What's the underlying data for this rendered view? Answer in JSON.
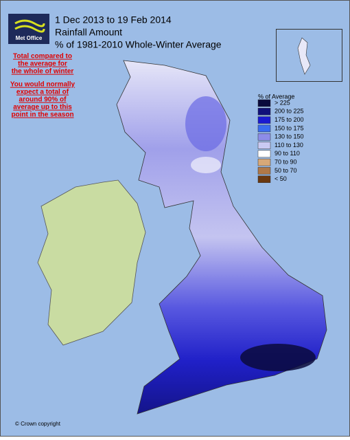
{
  "logo": "Met Office",
  "title_lines": [
    "1 Dec 2013 to 19 Feb 2014",
    "Rainfall Amount",
    "% of 1981-2010 Whole-Winter Average"
  ],
  "notes": [
    [
      "Total compared to",
      "the average for",
      "the whole of winter"
    ],
    [
      "You would normally",
      "expect a total of",
      "around 90% of",
      "average up to this",
      "point in the season"
    ]
  ],
  "legend": {
    "title": "% of Average",
    "items": [
      {
        "label": "> 225",
        "color": "#0a0a3c"
      },
      {
        "label": "200 to 225",
        "color": "#10107a"
      },
      {
        "label": "175 to 200",
        "color": "#1a1ad2"
      },
      {
        "label": "150 to 175",
        "color": "#3a6cf0"
      },
      {
        "label": "130 to 150",
        "color": "#8c8ce8"
      },
      {
        "label": "110 to 130",
        "color": "#cacaf2"
      },
      {
        "label": "90 to 110",
        "color": "#ffffff"
      },
      {
        "label": "70 to 90",
        "color": "#d8a878"
      },
      {
        "label": "50 to 70",
        "color": "#b07848"
      },
      {
        "label": "< 50",
        "color": "#6a3810"
      }
    ]
  },
  "copyright": "© Crown copyright"
}
